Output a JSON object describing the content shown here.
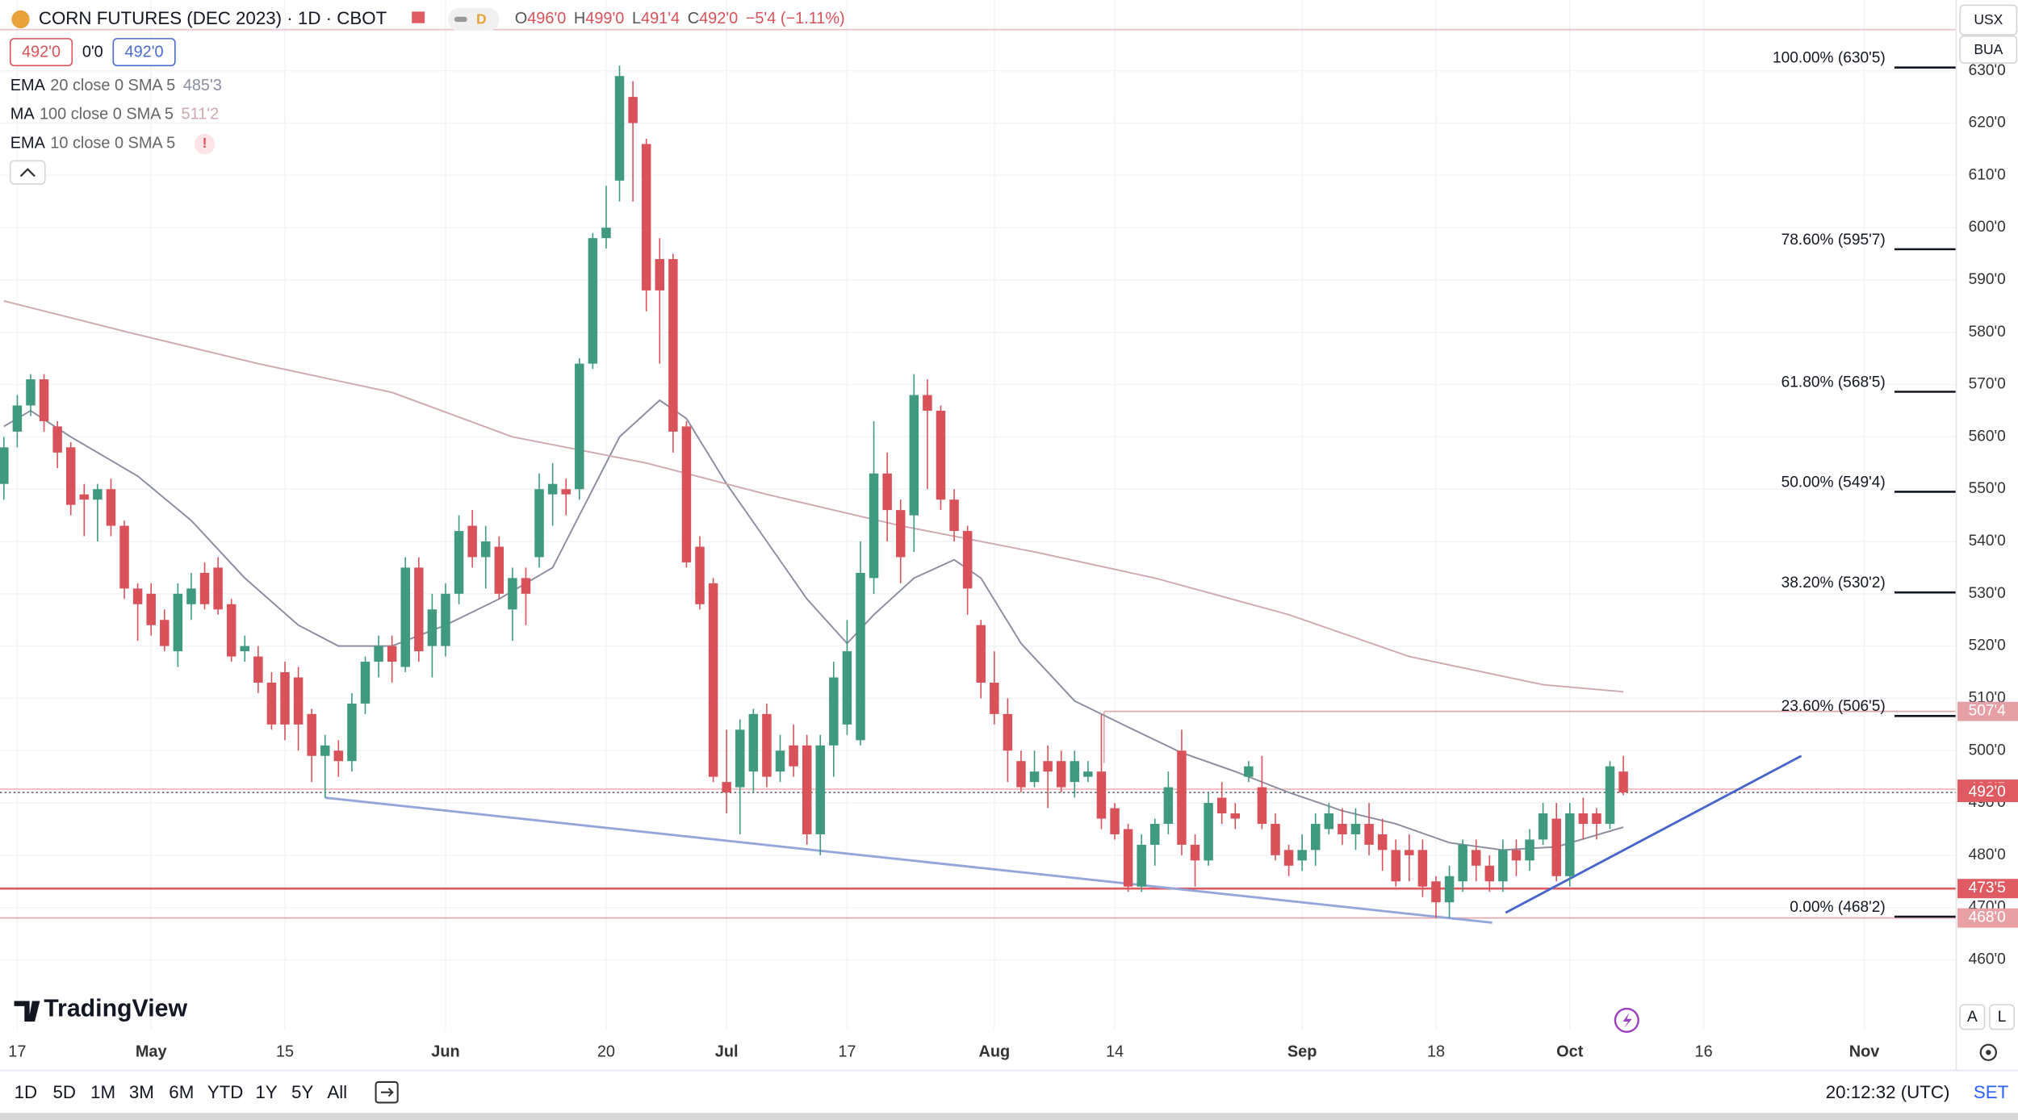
{
  "chart_data": {
    "type": "candlestick",
    "title": "CORN FUTURES (DEC 2023) · 1D · CBOT",
    "badge": "D",
    "ohlc": [
      {
        "label": "O",
        "value": "496'0"
      },
      {
        "label": "H",
        "value": "499'0"
      },
      {
        "label": "L",
        "value": "491'4"
      },
      {
        "label": "C",
        "value": "492'0"
      }
    ],
    "change": "−5'4 (−1.11%)",
    "price_boxes": [
      "492'0",
      "0'0",
      "492'0"
    ],
    "indicators": [
      {
        "label": "EMA",
        "params": "20 close 0 SMA 5",
        "value": "485'3",
        "color": "#8a8d9f",
        "x": [
          0,
          2,
          5,
          10,
          14,
          18,
          22,
          25,
          29,
          33,
          37,
          41,
          43,
          46,
          49,
          51,
          54,
          57,
          60,
          63,
          65,
          68,
          71,
          73,
          76,
          80,
          84,
          88,
          92,
          96,
          100,
          104,
          108,
          112,
          116,
          121
        ],
        "values": [
          562,
          565,
          560,
          552.5,
          544,
          533,
          524,
          520,
          520,
          524,
          529,
          535,
          545,
          560,
          567,
          563.5,
          551,
          540,
          529,
          520.5,
          526,
          533,
          536.5,
          533,
          520.5,
          509.5,
          504.5,
          499.6,
          496,
          492,
          488.5,
          486,
          482.4,
          481,
          481.6,
          485.375
        ]
      },
      {
        "label": "MA",
        "params": "100 close 0 SMA 5",
        "value": "511'2",
        "color": "#cfa9ad",
        "x": [
          0,
          9.3,
          19,
          29,
          38,
          48,
          57,
          67,
          77,
          86,
          96,
          105,
          115,
          121
        ],
        "values": [
          586,
          580,
          574,
          568.5,
          560,
          555,
          549,
          543,
          538,
          533,
          526,
          518,
          512.6,
          511.25
        ]
      },
      {
        "label": "EMA",
        "params": "10 close 0 SMA 5",
        "flag": "!"
      }
    ],
    "up_color": "#3f9a80",
    "down_color": "#d9525a",
    "open": [
      551,
      561,
      566,
      571,
      562,
      558,
      549,
      548,
      550,
      543,
      531,
      530,
      525,
      519,
      528,
      534,
      535,
      528,
      519,
      518,
      513,
      515,
      514,
      507,
      499,
      500,
      498,
      509,
      517,
      520,
      516,
      535,
      520,
      520,
      530,
      543,
      537,
      539,
      527,
      533,
      537,
      549,
      550,
      550,
      574,
      598,
      609,
      625,
      616,
      594,
      594,
      562,
      539,
      532,
      494,
      493,
      496,
      507,
      496,
      501,
      501,
      484,
      501,
      505,
      502,
      533,
      553,
      546,
      545,
      568,
      565,
      548,
      542,
      524,
      513,
      507,
      498,
      494,
      498,
      498,
      494,
      495,
      496,
      489,
      485,
      474,
      482,
      486,
      500,
      482,
      479,
      491,
      488,
      495,
      493,
      486,
      481,
      479,
      481,
      485,
      486,
      484,
      486,
      484,
      481,
      481,
      481,
      475,
      471,
      475,
      481,
      478,
      475,
      481,
      479,
      483,
      487,
      476,
      488,
      488,
      486,
      496
    ],
    "high": [
      560,
      568,
      572,
      572,
      563,
      559,
      551,
      551,
      552,
      544,
      532,
      532,
      527,
      532,
      534,
      536,
      537,
      529,
      522,
      520,
      515,
      517,
      516,
      508,
      503,
      502,
      511,
      518,
      522,
      522,
      537,
      537,
      530,
      532,
      545,
      546,
      543,
      541,
      535,
      535,
      553,
      555,
      552,
      575,
      599,
      608,
      631,
      628,
      617,
      598,
      595,
      563,
      541,
      533,
      504,
      506,
      508,
      509,
      503,
      505,
      503,
      503,
      517,
      525,
      540,
      563,
      557,
      548,
      572,
      571,
      566,
      550,
      543,
      525,
      519,
      510,
      500,
      500,
      501,
      500,
      500,
      498,
      507,
      490,
      486,
      484,
      487,
      496,
      504,
      484,
      492,
      494,
      490,
      498,
      499,
      488,
      482,
      484,
      488,
      490,
      489,
      489,
      490,
      487,
      483,
      484,
      483,
      476,
      478,
      483,
      483,
      480,
      483,
      483,
      485,
      490,
      490,
      490,
      491,
      489,
      498,
      499
    ],
    "low": [
      548,
      558,
      564,
      561,
      554,
      545,
      541,
      540,
      541,
      529,
      521,
      522,
      519,
      516,
      525,
      527,
      526,
      517,
      517,
      511,
      504,
      502,
      500,
      494,
      491,
      495,
      496,
      507,
      514,
      513,
      515,
      517,
      514,
      518,
      528,
      535,
      531,
      529,
      521,
      524,
      535,
      543,
      545,
      548,
      573,
      596,
      605,
      605,
      584,
      574,
      557,
      535,
      527,
      494,
      488,
      484,
      492,
      493,
      494,
      495,
      482,
      480,
      495,
      503,
      501,
      530,
      540,
      532,
      538,
      550,
      546,
      540,
      526,
      510,
      505,
      494,
      492,
      493,
      489,
      492,
      491,
      494,
      485,
      483,
      473,
      473,
      478,
      484,
      480,
      474,
      478,
      486,
      485,
      494,
      485,
      479,
      476,
      477,
      478,
      484,
      482,
      481,
      480,
      477,
      474,
      475,
      472,
      468,
      468,
      473,
      475,
      473,
      473,
      476,
      477,
      482,
      475,
      474,
      483,
      483,
      485,
      491.5
    ],
    "close": [
      558,
      566,
      571,
      563,
      557,
      547,
      548,
      550,
      543,
      531,
      528,
      524,
      520,
      530,
      531,
      528,
      527,
      518,
      520,
      513,
      505,
      505,
      505,
      499,
      501,
      498,
      509,
      517,
      520,
      517,
      535,
      519,
      527,
      530,
      542,
      537,
      540,
      530,
      533,
      530,
      550,
      551,
      549,
      574,
      598,
      600,
      629,
      620,
      588,
      588,
      561,
      536,
      528,
      495,
      492,
      504,
      507,
      495,
      500,
      497,
      484,
      501,
      514,
      519,
      534,
      553,
      546,
      537,
      568,
      565,
      548,
      542,
      531,
      513,
      507,
      500,
      493,
      496,
      496,
      493,
      498,
      496,
      487,
      484,
      474,
      482,
      486,
      493,
      482,
      479,
      490,
      488,
      487,
      497,
      486,
      480,
      478,
      481,
      486,
      488,
      484,
      486,
      482,
      481,
      475,
      480,
      474,
      471,
      476,
      482,
      478,
      475,
      481,
      479,
      483,
      488,
      476,
      488,
      486,
      486,
      497,
      492
    ],
    "xlim": [
      -0.29,
      145.87
    ],
    "xticks": [
      {
        "value": 1,
        "label": "17"
      },
      {
        "value": 11,
        "label": "May"
      },
      {
        "value": 21,
        "label": "15"
      },
      {
        "value": 33,
        "label": "Jun"
      },
      {
        "value": 45,
        "label": "20"
      },
      {
        "value": 54,
        "label": "Jul"
      },
      {
        "value": 63,
        "label": "17"
      },
      {
        "value": 74,
        "label": "Aug"
      },
      {
        "value": 83,
        "label": "14"
      },
      {
        "value": 97,
        "label": "Sep"
      },
      {
        "value": 107,
        "label": "18"
      },
      {
        "value": 117,
        "label": "Oct"
      },
      {
        "value": 127,
        "label": "16"
      },
      {
        "value": 139,
        "label": "Nov"
      }
    ],
    "ylim": [
      446.72,
      643.53
    ],
    "yticks": [
      {
        "value": 460,
        "label": "460'0"
      },
      {
        "value": 470,
        "label": "470'0"
      },
      {
        "value": 480,
        "label": "480'0"
      },
      {
        "value": 490,
        "label": "490'0"
      },
      {
        "value": 500,
        "label": "500'0"
      },
      {
        "value": 510,
        "label": "510'0"
      },
      {
        "value": 520,
        "label": "520'0"
      },
      {
        "value": 530,
        "label": "530'0"
      },
      {
        "value": 540,
        "label": "540'0"
      },
      {
        "value": 550,
        "label": "550'0"
      },
      {
        "value": 560,
        "label": "560'0"
      },
      {
        "value": 570,
        "label": "570'0"
      },
      {
        "value": 580,
        "label": "580'0"
      },
      {
        "value": 590,
        "label": "590'0"
      },
      {
        "value": 600,
        "label": "600'0"
      },
      {
        "value": 610,
        "label": "610'0"
      },
      {
        "value": 620,
        "label": "620'0"
      },
      {
        "value": 630,
        "label": "630'0"
      }
    ],
    "fib_levels": [
      {
        "value": 630.625,
        "label": "100.00% (630'5)"
      },
      {
        "value": 595.875,
        "label": "78.60% (595'7)"
      },
      {
        "value": 568.625,
        "label": "61.80% (568'5)"
      },
      {
        "value": 549.5,
        "label": "50.00% (549'4)"
      },
      {
        "value": 530.25,
        "label": "38.20% (530'2)"
      },
      {
        "value": 506.625,
        "label": "23.60% (506'5)"
      },
      {
        "value": 468.25,
        "label": "0.00% (468'2)"
      }
    ],
    "hlines": [
      {
        "value": 507.5,
        "label": "507'4",
        "color": "#e4a7ab",
        "x0": 82.2
      },
      {
        "value": 492.625,
        "label": "492'5",
        "color": "#f0b9bc",
        "x0": -0.29
      },
      {
        "value": 492,
        "label": "492'0",
        "color": "#555555",
        "dashed": true,
        "x0": -0.29
      },
      {
        "value": 473.625,
        "label": "473'5",
        "color": "#e15a60",
        "x0": -0.29
      },
      {
        "value": 468,
        "label": "468'0",
        "color": "#e9a9ad",
        "x0": -0.29
      }
    ],
    "label_colors": {
      "473'5": "#e05a62",
      "492'5": "#e05a62",
      "492'0": "#e05a62",
      "507'4": "#e4a0a5",
      "468'0": "#e9a0a5"
    },
    "trendlines": [
      {
        "x0": 24.0,
        "y0": 491,
        "x1": 111.2,
        "y1": 467.1,
        "color": "#94a6dc"
      },
      {
        "x0": 112.2,
        "y0": 469,
        "x1": 134.3,
        "y1": 499,
        "color": "#4766cc"
      }
    ],
    "currency": "USX",
    "unit": "BUA",
    "logo": "TradingView",
    "scale_buttons": [
      "A",
      "L"
    ],
    "ranges": [
      "1D",
      "5D",
      "1M",
      "3M",
      "6M",
      "YTD",
      "1Y",
      "5Y",
      "All"
    ],
    "clock": "20:12:32 (UTC)",
    "settings": "SET"
  }
}
